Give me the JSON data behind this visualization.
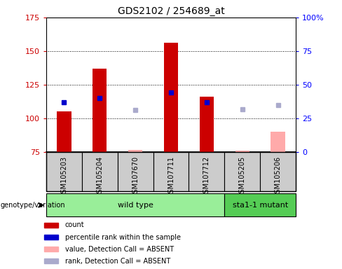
{
  "title": "GDS2102 / 254689_at",
  "sample_labels": [
    "GSM105203",
    "GSM105204",
    "GSM107670",
    "GSM107711",
    "GSM107712",
    "GSM105205",
    "GSM105206"
  ],
  "ylim_left": [
    75,
    175
  ],
  "ylim_right": [
    0,
    100
  ],
  "yticks_left": [
    75,
    100,
    125,
    150,
    175
  ],
  "yticks_right": [
    0,
    25,
    50,
    75,
    100
  ],
  "ytick_labels_right": [
    "0",
    "25",
    "50",
    "75",
    "100%"
  ],
  "red_bars": [
    105,
    137,
    null,
    156,
    116,
    null,
    null
  ],
  "pink_bars": [
    null,
    null,
    76.5,
    null,
    null,
    76,
    90
  ],
  "blue_squares_y": [
    112,
    115,
    null,
    119,
    112,
    null,
    null
  ],
  "lavender_squares_y": [
    null,
    null,
    106,
    null,
    null,
    107,
    110
  ],
  "wild_type_count": 5,
  "mutant_count": 2,
  "wild_type_label": "wild type",
  "mutant_label": "sta1-1 mutant",
  "genotype_label": "genotype/variation",
  "legend_labels": [
    "count",
    "percentile rank within the sample",
    "value, Detection Call = ABSENT",
    "rank, Detection Call = ABSENT"
  ],
  "bar_width": 0.4,
  "red_color": "#cc0000",
  "pink_color": "#ffaaaa",
  "blue_color": "#0000cc",
  "lavender_color": "#aaaacc",
  "wild_type_bg": "#99ee99",
  "mutant_bg": "#55cc55",
  "sample_bg": "#cccccc",
  "plot_bg": "#ffffff",
  "title_fontsize": 10,
  "tick_fontsize": 8,
  "label_fontsize": 7
}
